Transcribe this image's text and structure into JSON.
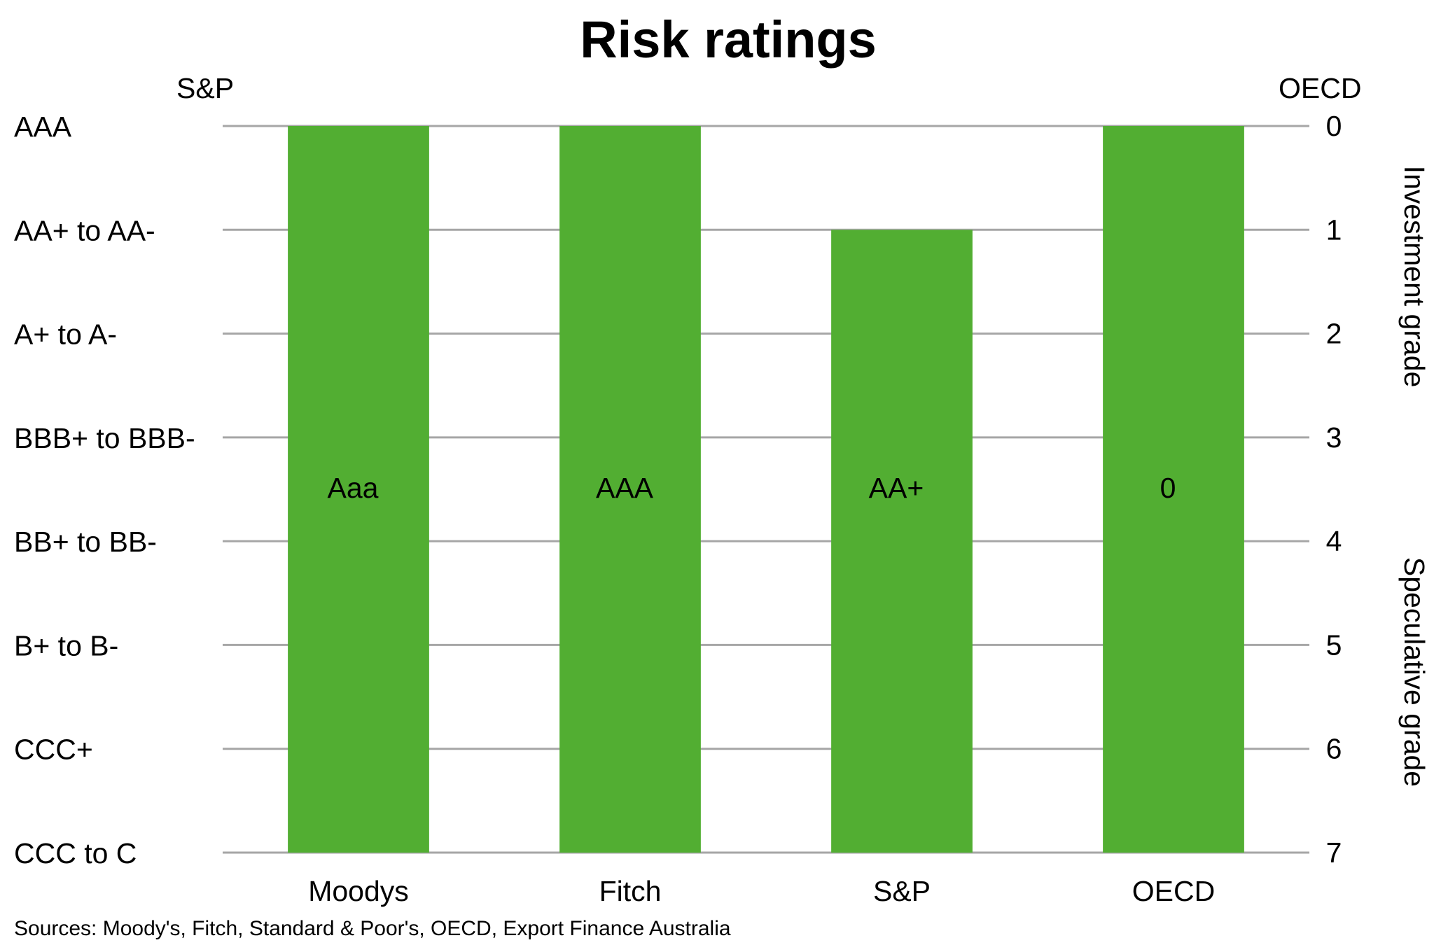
{
  "chart_data": {
    "type": "bar",
    "title": "Risk ratings",
    "left_axis_title": "S&P",
    "right_axis_title": "OECD",
    "categories": [
      "Moodys",
      "Fitch",
      "S&P",
      "OECD"
    ],
    "values": [
      7,
      7,
      6,
      7
    ],
    "bar_labels": [
      "Aaa",
      "AAA",
      "AA+",
      "0"
    ],
    "left_tick_labels": [
      "AAA",
      "AA+ to AA-",
      "A+ to A-",
      "BBB+ to BBB-",
      "BB+ to BB-",
      "B+ to B-",
      "CCC+",
      "CCC to C"
    ],
    "right_tick_labels": [
      "0",
      "1",
      "2",
      "3",
      "4",
      "5",
      "6",
      "7"
    ],
    "right_axis_reversed": true,
    "ylim": [
      0,
      7
    ],
    "side_labels": {
      "upper": "Investment grade",
      "lower": "Speculative grade"
    },
    "grid": true,
    "legend": "none",
    "source": "Sources: Moody's, Fitch, Standard & Poor's, OECD, Export Finance Australia",
    "colors": {
      "bar": "#52AE32",
      "grid": "#A6A6A6",
      "text": "#000000"
    }
  }
}
